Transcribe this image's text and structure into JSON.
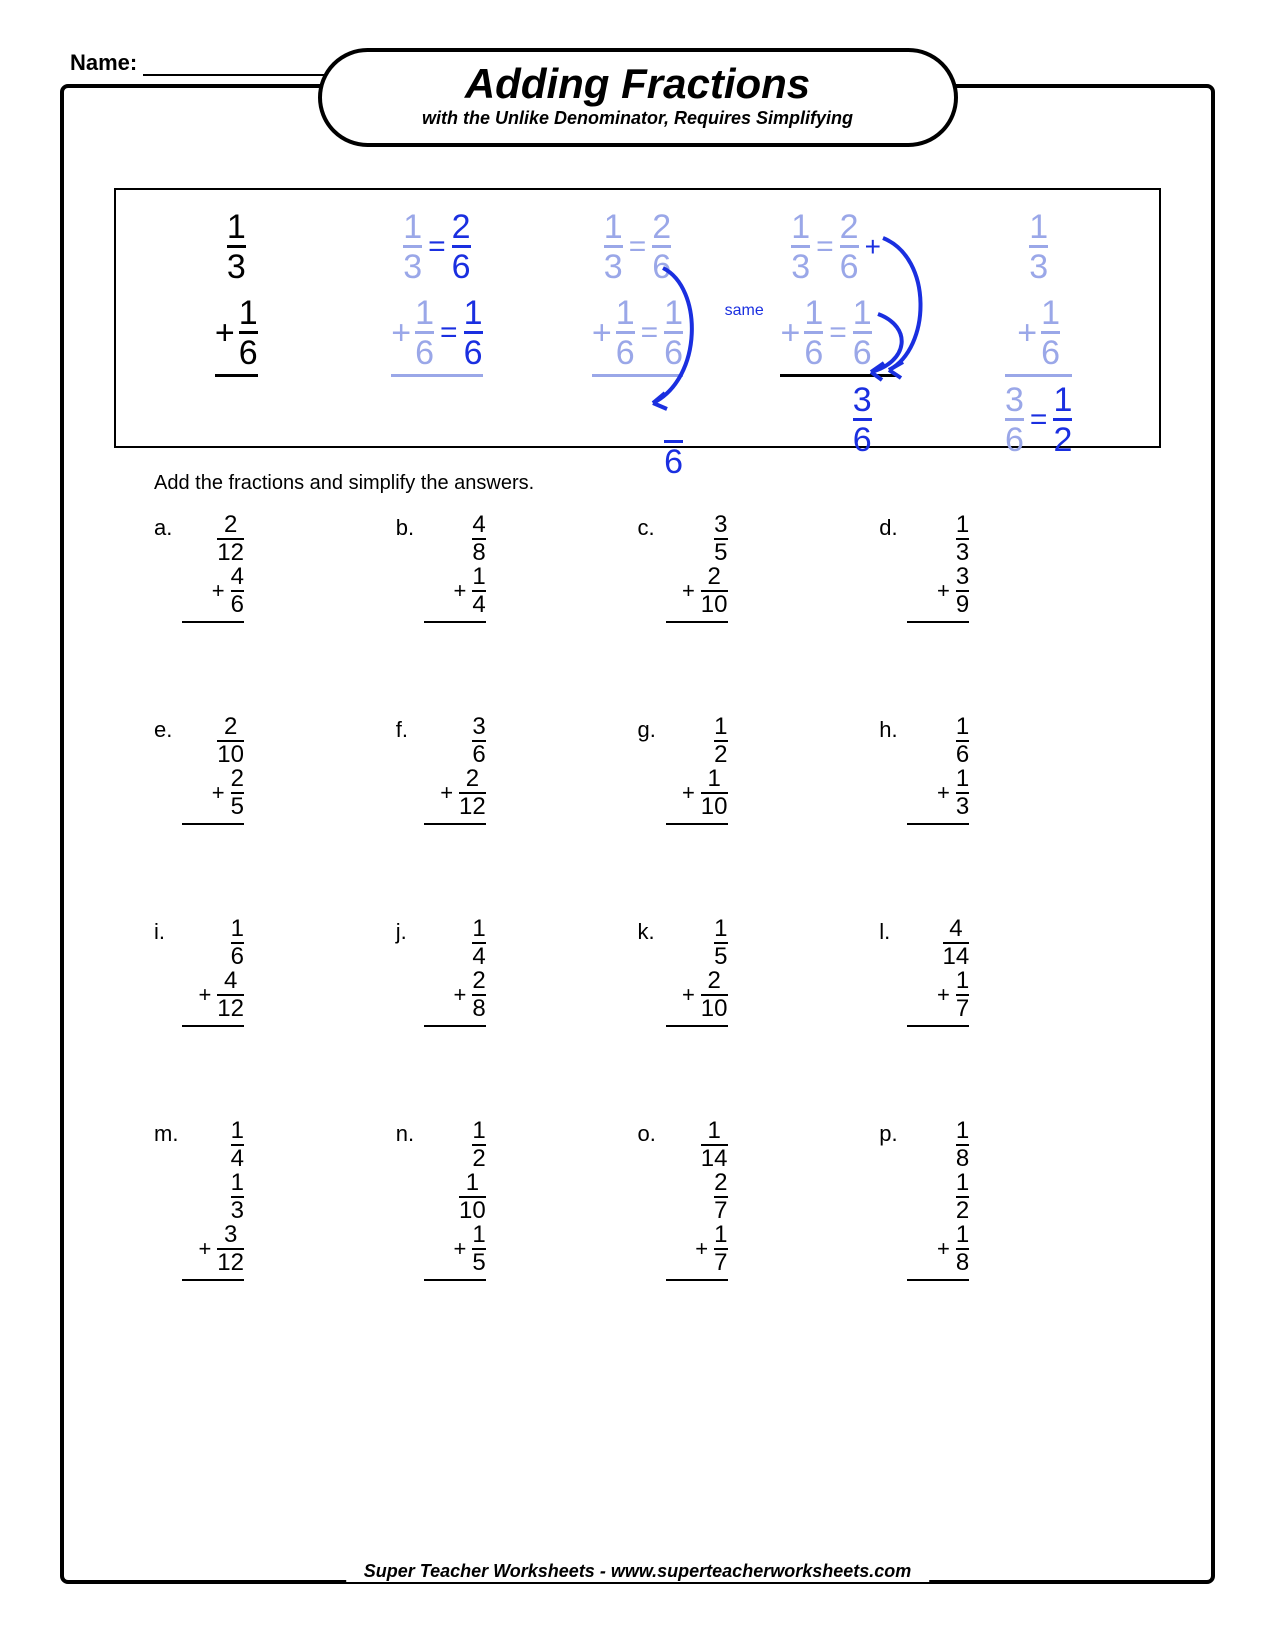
{
  "name_label": "Name:",
  "title": "Adding Fractions",
  "subtitle": "with the Unlike Denominator, Requires Simplifying",
  "instructions": "Add the fractions and simplify the answers.",
  "footer": "Super Teacher Worksheets - www.superteacherworksheets.com",
  "colors": {
    "black": "#000000",
    "blue": "#1a2fe0",
    "faded_blue": "#9aa7e8",
    "white": "#ffffff"
  },
  "example": {
    "same_label": "same",
    "steps": [
      {
        "top": {
          "n": "1",
          "d": "3"
        },
        "bot": {
          "n": "1",
          "d": "6"
        },
        "eq_top": null,
        "eq_bot": null,
        "result": null
      },
      {
        "top": {
          "n": "1",
          "d": "3"
        },
        "bot": {
          "n": "1",
          "d": "6"
        },
        "eq_top": {
          "n": "2",
          "d": "6"
        },
        "eq_bot": {
          "n": "1",
          "d": "6"
        },
        "result": null
      },
      {
        "top": {
          "n": "1",
          "d": "3"
        },
        "bot": {
          "n": "1",
          "d": "6"
        },
        "eq_top": {
          "n": "2",
          "d": "6"
        },
        "eq_bot": {
          "n": "1",
          "d": "6"
        },
        "result_d": "6"
      },
      {
        "top": {
          "n": "1",
          "d": "3"
        },
        "bot": {
          "n": "1",
          "d": "6"
        },
        "eq_top": {
          "n": "2",
          "d": "6"
        },
        "eq_bot": {
          "n": "1",
          "d": "6"
        },
        "result": {
          "n": "3",
          "d": "6"
        }
      },
      {
        "top": {
          "n": "1",
          "d": "3"
        },
        "bot": {
          "n": "1",
          "d": "6"
        },
        "result": {
          "n": "3",
          "d": "6"
        },
        "simplified": {
          "n": "1",
          "d": "2"
        }
      }
    ]
  },
  "problems": [
    [
      {
        "l": "a.",
        "f": [
          {
            "n": "2",
            "d": "12"
          },
          {
            "n": "4",
            "d": "6"
          }
        ]
      },
      {
        "l": "b.",
        "f": [
          {
            "n": "4",
            "d": "8"
          },
          {
            "n": "1",
            "d": "4"
          }
        ]
      },
      {
        "l": "c.",
        "f": [
          {
            "n": "3",
            "d": "5"
          },
          {
            "n": "2",
            "d": "10"
          }
        ]
      },
      {
        "l": "d.",
        "f": [
          {
            "n": "1",
            "d": "3"
          },
          {
            "n": "3",
            "d": "9"
          }
        ]
      }
    ],
    [
      {
        "l": "e.",
        "f": [
          {
            "n": "2",
            "d": "10"
          },
          {
            "n": "2",
            "d": "5"
          }
        ]
      },
      {
        "l": "f.",
        "f": [
          {
            "n": "3",
            "d": "6"
          },
          {
            "n": "2",
            "d": "12"
          }
        ]
      },
      {
        "l": "g.",
        "f": [
          {
            "n": "1",
            "d": "2"
          },
          {
            "n": "1",
            "d": "10"
          }
        ]
      },
      {
        "l": "h.",
        "f": [
          {
            "n": "1",
            "d": "6"
          },
          {
            "n": "1",
            "d": "3"
          }
        ]
      }
    ],
    [
      {
        "l": "i.",
        "f": [
          {
            "n": "1",
            "d": "6"
          },
          {
            "n": "4",
            "d": "12"
          }
        ]
      },
      {
        "l": "j.",
        "f": [
          {
            "n": "1",
            "d": "4"
          },
          {
            "n": "2",
            "d": "8"
          }
        ]
      },
      {
        "l": "k.",
        "f": [
          {
            "n": "1",
            "d": "5"
          },
          {
            "n": "2",
            "d": "10"
          }
        ]
      },
      {
        "l": "l.",
        "f": [
          {
            "n": "4",
            "d": "14"
          },
          {
            "n": "1",
            "d": "7"
          }
        ]
      }
    ],
    [
      {
        "l": "m.",
        "f": [
          {
            "n": "1",
            "d": "4"
          },
          {
            "n": "1",
            "d": "3"
          },
          {
            "n": "3",
            "d": "12"
          }
        ]
      },
      {
        "l": "n.",
        "f": [
          {
            "n": "1",
            "d": "2"
          },
          {
            "n": "1",
            "d": "10"
          },
          {
            "n": "1",
            "d": "5"
          }
        ]
      },
      {
        "l": "o.",
        "f": [
          {
            "n": "1",
            "d": "14"
          },
          {
            "n": "2",
            "d": "7"
          },
          {
            "n": "1",
            "d": "7"
          }
        ]
      },
      {
        "l": "p.",
        "f": [
          {
            "n": "1",
            "d": "8"
          },
          {
            "n": "1",
            "d": "2"
          },
          {
            "n": "1",
            "d": "8"
          }
        ]
      }
    ]
  ]
}
